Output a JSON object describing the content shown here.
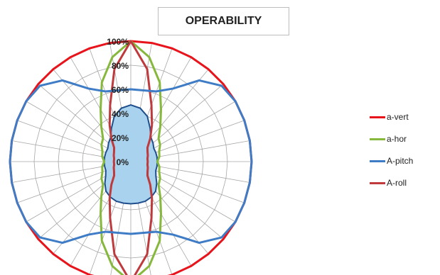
{
  "chart_data": {
    "type": "radar",
    "title": "OPERABILITY",
    "r_ticks": [
      "0%",
      "20%",
      "40%",
      "60%",
      "80%",
      "100%"
    ],
    "r_range": [
      0,
      100
    ],
    "spokes": 36,
    "grid": true,
    "legend_position": "right",
    "series": [
      {
        "name": "a-vert",
        "color": "#e8141c",
        "fill": false,
        "values": [
          100,
          100,
          100,
          100,
          100,
          100,
          100,
          100,
          100,
          100,
          100,
          100,
          100,
          100,
          100,
          100,
          100,
          100,
          100,
          100,
          100,
          100,
          100,
          100,
          100,
          100,
          100,
          100,
          100,
          100,
          100,
          100,
          100,
          100,
          100,
          100
        ]
      },
      {
        "name": "a-hor",
        "color": "#86b83b",
        "fill": false,
        "values": [
          100,
          88,
          70,
          50,
          38,
          30,
          28,
          25,
          24,
          22,
          24,
          25,
          28,
          30,
          38,
          50,
          70,
          88,
          100,
          88,
          70,
          50,
          38,
          30,
          28,
          25,
          24,
          22,
          24,
          25,
          28,
          30,
          38,
          50,
          70,
          88
        ]
      },
      {
        "name": "A-pitch",
        "color": "#3e7cc6",
        "fill": false,
        "values": [
          60,
          60,
          62,
          70,
          88,
          98,
          100,
          100,
          100,
          100,
          100,
          100,
          100,
          98,
          88,
          70,
          62,
          60,
          60,
          60,
          62,
          70,
          88,
          98,
          100,
          100,
          100,
          100,
          100,
          100,
          100,
          98,
          88,
          70,
          62,
          60
        ]
      },
      {
        "name": "A-roll",
        "color": "#bf3a3c",
        "fill": false,
        "values": [
          100,
          78,
          50,
          35,
          25,
          18,
          16,
          15,
          14,
          14,
          14,
          15,
          16,
          18,
          25,
          35,
          50,
          78,
          100,
          78,
          50,
          35,
          25,
          18,
          16,
          15,
          14,
          14,
          14,
          15,
          16,
          18,
          25,
          35,
          50,
          78
        ]
      },
      {
        "name": "",
        "color": "#1f4e8c",
        "fill": true,
        "fill_color": "#a9d2ee",
        "values": [
          47,
          45,
          40,
          32,
          26,
          24,
          22,
          22,
          22,
          22,
          22,
          22,
          24,
          28,
          32,
          34,
          35,
          35,
          35,
          35,
          35,
          34,
          32,
          28,
          24,
          22,
          22,
          22,
          22,
          22,
          22,
          24,
          26,
          32,
          40,
          45
        ]
      }
    ]
  }
}
